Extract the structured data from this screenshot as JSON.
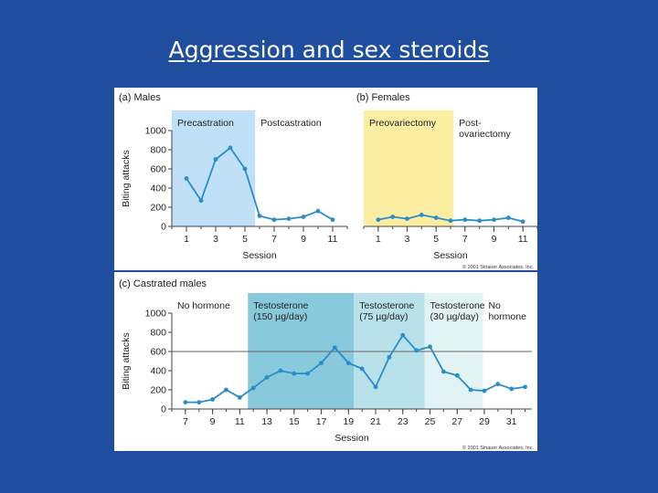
{
  "slide": {
    "title": "Aggression and sex steroids"
  },
  "copyright": "© 2001 Sinauer Associates, Inc.",
  "colors": {
    "background": "#1f4e9e",
    "line": "#2a8cc8",
    "precastration_shade": "#bfe0f6",
    "preovariectomy_shade": "#fbeea3",
    "testosterone_150_shade": "#88c9dc",
    "testosterone_75_shade": "#b9e1ea",
    "testosterone_30_shade": "#e2f3f6"
  },
  "chart_data": [
    {
      "id": "a",
      "type": "line",
      "panel_label": "(a) Males",
      "xlabel": "Session",
      "ylabel": "Biting attacks",
      "xlim": [
        0,
        12
      ],
      "ylim": [
        0,
        1000
      ],
      "xticks": [
        1,
        3,
        5,
        7,
        9,
        11
      ],
      "yticks": [
        0,
        200,
        400,
        600,
        800,
        1000
      ],
      "regions": [
        {
          "label": "Precastration",
          "from": 0,
          "to": 5.7,
          "color": "#bfe0f6"
        },
        {
          "label": "Postcastration",
          "from": 5.7,
          "to": 12,
          "color": null
        }
      ],
      "series": [
        {
          "x": [
            1,
            2,
            3,
            4,
            5,
            6,
            7,
            8,
            9,
            10,
            11
          ],
          "y": [
            500,
            270,
            700,
            820,
            600,
            110,
            70,
            80,
            100,
            160,
            70
          ]
        }
      ]
    },
    {
      "id": "b",
      "type": "line",
      "panel_label": "(b) Females",
      "xlabel": "Session",
      "xlim": [
        0,
        12
      ],
      "ylim": [
        0,
        1000
      ],
      "xticks": [
        1,
        3,
        5,
        7,
        9,
        11
      ],
      "regions": [
        {
          "label": "Preovariectomy",
          "from": 0,
          "to": 6.2,
          "color": "#fbeea3"
        },
        {
          "label": "Post-\novariectomy",
          "from": 6.2,
          "to": 12,
          "color": null
        }
      ],
      "series": [
        {
          "x": [
            1,
            2,
            3,
            4,
            5,
            6,
            7,
            8,
            9,
            10,
            11
          ],
          "y": [
            70,
            100,
            80,
            120,
            90,
            60,
            70,
            60,
            70,
            90,
            50
          ]
        }
      ]
    },
    {
      "id": "c",
      "type": "line",
      "panel_label": "(c) Castrated males",
      "xlabel": "Session",
      "ylabel": "Biting attacks",
      "xlim": [
        6,
        32.5
      ],
      "ylim": [
        0,
        1000
      ],
      "xticks": [
        7,
        9,
        11,
        13,
        15,
        17,
        19,
        21,
        23,
        25,
        27,
        29,
        31
      ],
      "yticks": [
        0,
        200,
        400,
        600,
        800,
        1000
      ],
      "reference_line": 600,
      "regions": [
        {
          "label": "No hormone",
          "from": 6,
          "to": 11.6,
          "color": null
        },
        {
          "label": "Testosterone\n(150 µg/day)",
          "from": 11.6,
          "to": 19.4,
          "color": "#88c9dc"
        },
        {
          "label": "Testosterone\n(75 µg/day)",
          "from": 19.4,
          "to": 24.6,
          "color": "#b9e1ea"
        },
        {
          "label": "Testosterone\n(30 µg/day)",
          "from": 24.6,
          "to": 28.9,
          "color": "#e2f3f6"
        },
        {
          "label": "No\nhormone",
          "from": 28.9,
          "to": 32.5,
          "color": null
        }
      ],
      "series": [
        {
          "x": [
            7,
            8,
            9,
            10,
            11,
            12,
            13,
            14,
            15,
            16,
            17,
            18,
            19,
            20,
            21,
            22,
            23,
            24,
            25,
            26,
            27,
            28,
            29,
            30,
            31,
            32
          ],
          "y": [
            70,
            70,
            100,
            200,
            120,
            220,
            330,
            400,
            370,
            370,
            480,
            640,
            480,
            420,
            230,
            540,
            770,
            610,
            650,
            390,
            350,
            200,
            190,
            260,
            210,
            230
          ]
        }
      ]
    }
  ]
}
